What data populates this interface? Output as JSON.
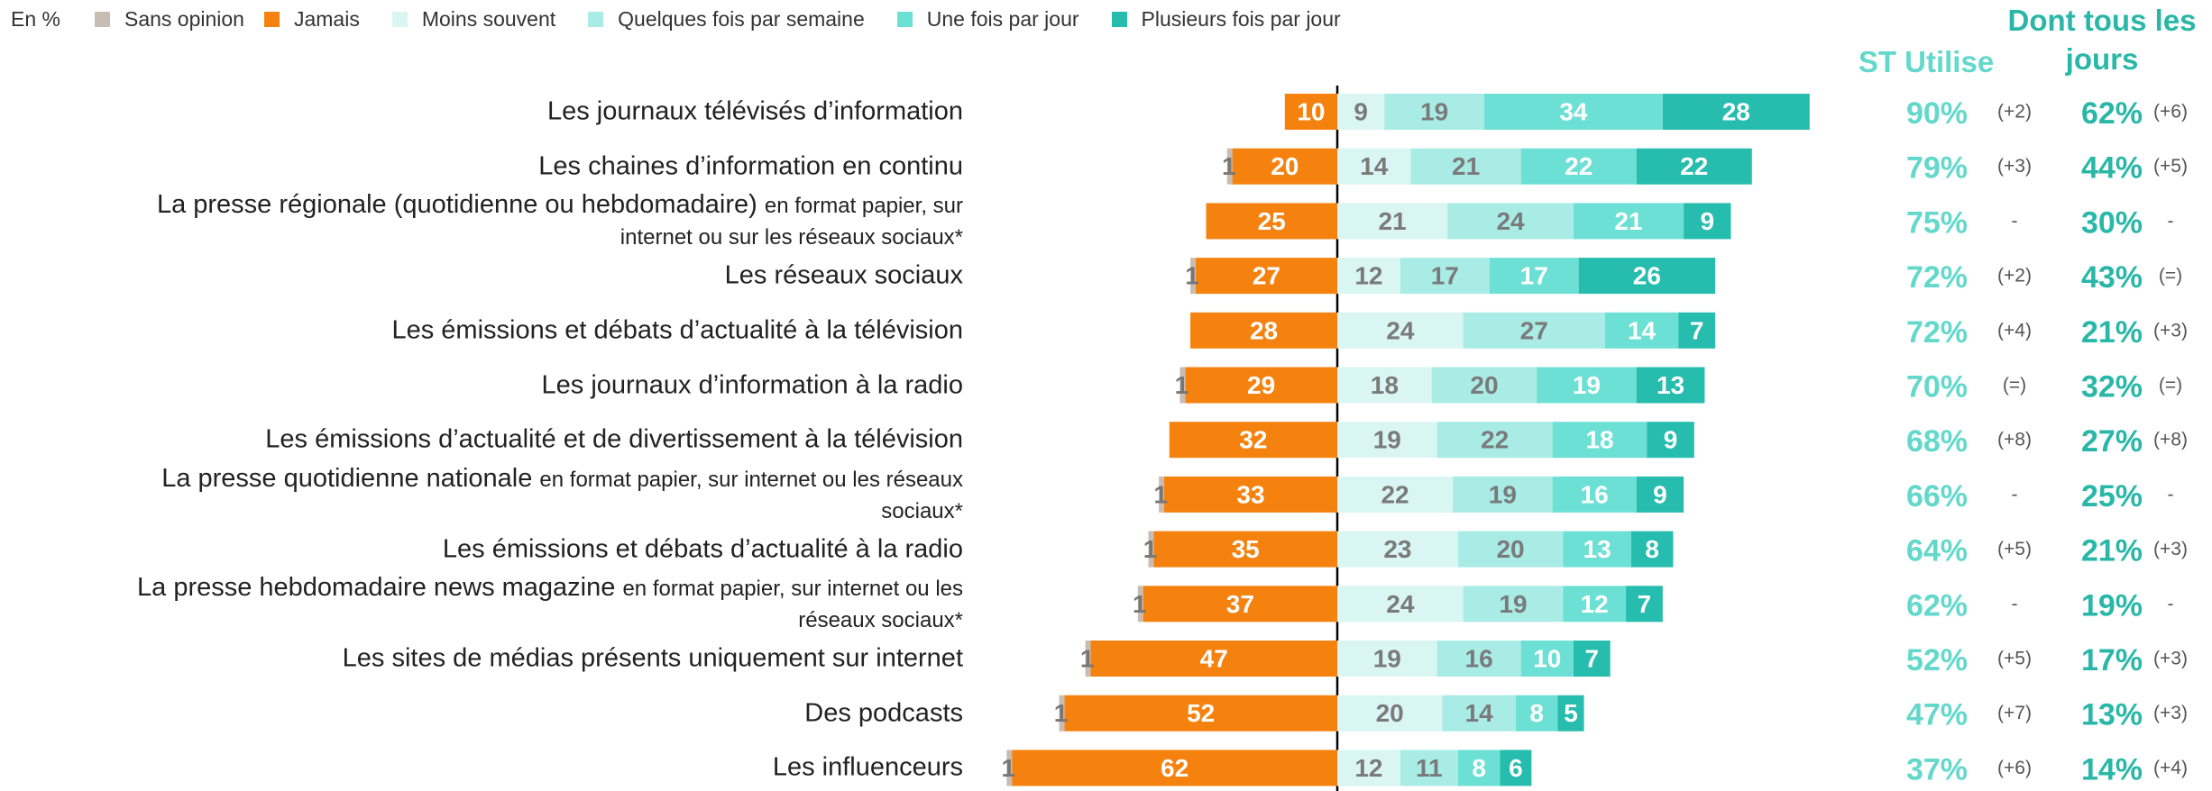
{
  "chart_data": {
    "type": "diverging_bar",
    "unit_note": "En %",
    "categories": [
      {
        "main": "Les journaux télévisés d’information"
      },
      {
        "main": "Les chaines d’information en continu"
      },
      {
        "main": "La presse régionale (quotidienne ou hebdomadaire)",
        "detail": "en format papier, sur internet ou sur les réseaux sociaux*"
      },
      {
        "main": "Les réseaux sociaux"
      },
      {
        "main": "Les émissions et débats d’actualité à la télévision"
      },
      {
        "main": "Les journaux d’information à la radio"
      },
      {
        "main": "Les émissions d’actualité et de divertissement à la télévision"
      },
      {
        "main": "La presse quotidienne nationale",
        "detail": "en format papier, sur internet ou les réseaux sociaux*"
      },
      {
        "main": "Les émissions et débats d’actualité à la radio"
      },
      {
        "main": "La presse hebdomadaire news magazine",
        "detail": "en format papier, sur internet ou les réseaux sociaux*"
      },
      {
        "main": "Les sites de médias présents uniquement sur internet"
      },
      {
        "main": "Des podcasts"
      },
      {
        "main": "Les influenceurs"
      }
    ],
    "series": [
      {
        "name": "Sans opinion",
        "color": "#c8bdb3",
        "side": "left",
        "values": [
          null,
          1,
          null,
          1,
          null,
          1,
          null,
          1,
          1,
          1,
          1,
          1,
          1
        ]
      },
      {
        "name": "Jamais",
        "color": "#f5820f",
        "side": "left",
        "values": [
          10,
          20,
          25,
          27,
          28,
          29,
          32,
          33,
          35,
          37,
          47,
          52,
          62
        ]
      },
      {
        "name": "Moins souvent",
        "color": "#daf6f3",
        "side": "right",
        "values": [
          9,
          14,
          21,
          12,
          24,
          18,
          19,
          22,
          23,
          24,
          19,
          20,
          12
        ]
      },
      {
        "name": "Quelques fois par semaine",
        "color": "#a8ece5",
        "side": "right",
        "values": [
          19,
          21,
          24,
          17,
          27,
          20,
          22,
          19,
          20,
          19,
          16,
          14,
          11
        ]
      },
      {
        "name": "Une fois par jour",
        "color": "#6de0d5",
        "side": "right",
        "values": [
          34,
          22,
          21,
          17,
          14,
          19,
          18,
          16,
          13,
          12,
          10,
          8,
          8
        ]
      },
      {
        "name": "Plusieurs fois par jour",
        "color": "#26bcae",
        "side": "right",
        "values": [
          28,
          22,
          9,
          26,
          7,
          13,
          9,
          9,
          8,
          7,
          7,
          5,
          6
        ]
      }
    ],
    "columns": [
      {
        "name": "ST Utilise",
        "color": "#63d8cb",
        "values": [
          90,
          79,
          75,
          72,
          72,
          70,
          68,
          66,
          64,
          62,
          52,
          47,
          37
        ],
        "value_labels": [
          "90%",
          "79%",
          "75%",
          "72%",
          "72%",
          "70%",
          "68%",
          "66%",
          "64%",
          "62%",
          "52%",
          "47%",
          "37%"
        ],
        "changes": [
          "(+2)",
          "(+3)",
          "-",
          "(+2)",
          "(+4)",
          "(=)",
          "(+8)",
          "-",
          "(+5)",
          "-",
          "(+5)",
          "(+7)",
          "(+6)"
        ]
      },
      {
        "name": "Dont tous les jours",
        "color": "#2ab7a8",
        "values": [
          62,
          44,
          30,
          43,
          21,
          32,
          27,
          25,
          21,
          19,
          17,
          13,
          14
        ],
        "value_labels": [
          "62%",
          "44%",
          "30%",
          "43%",
          "21%",
          "32%",
          "27%",
          "25%",
          "21%",
          "19%",
          "17%",
          "13%",
          "14%"
        ],
        "changes": [
          "(+6)",
          "(+5)",
          "-",
          "(=)",
          "(+3)",
          "(=)",
          "(+8)",
          "-",
          "(+3)",
          "-",
          "(+3)",
          "(+3)",
          "(+4)"
        ]
      }
    ]
  }
}
